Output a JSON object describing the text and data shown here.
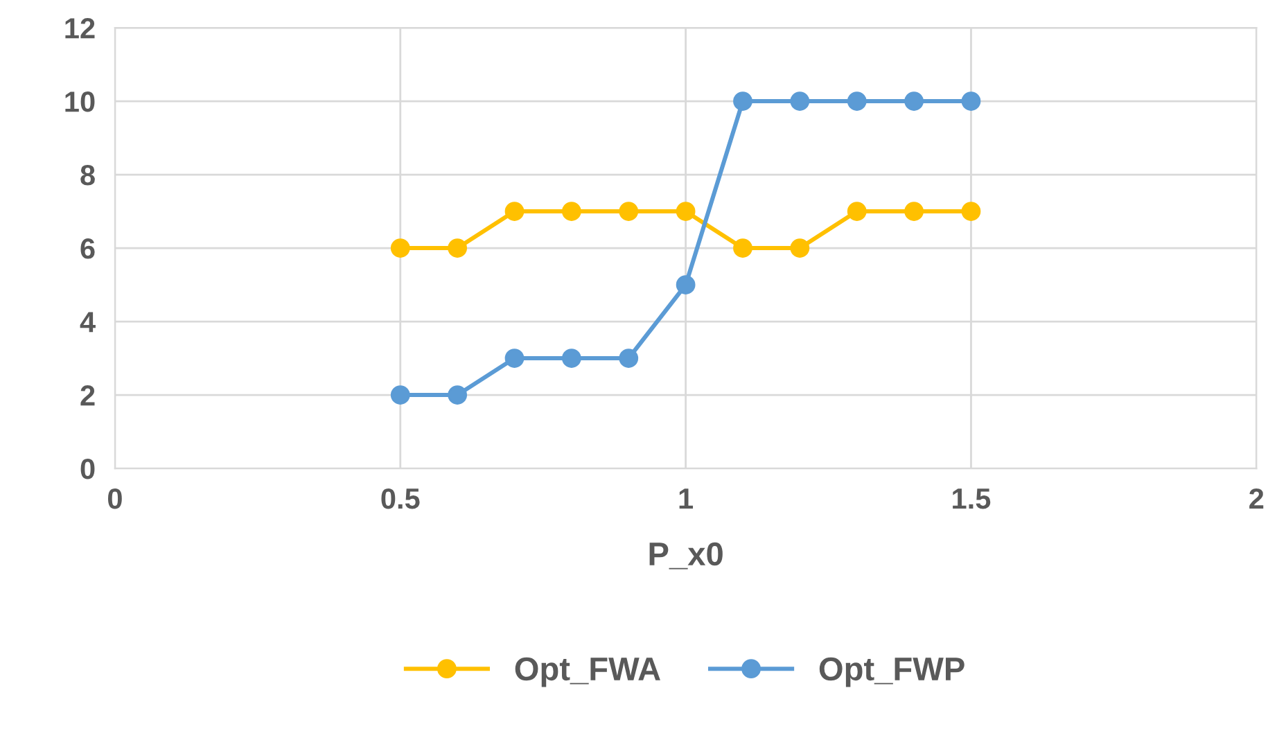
{
  "chart_data": {
    "type": "line",
    "xlabel": "P_x0",
    "x": [
      0.5,
      0.6,
      0.7,
      0.8,
      0.9,
      1.0,
      1.1,
      1.2,
      1.3,
      1.4,
      1.5
    ],
    "series": [
      {
        "name": "Opt_FWA",
        "color": "#ffc000",
        "values": [
          6,
          6,
          7,
          7,
          7,
          7,
          6,
          6,
          7,
          7,
          7
        ]
      },
      {
        "name": "Opt_FWP",
        "color": "#5b9bd5",
        "values": [
          2,
          2,
          3,
          3,
          3,
          5,
          10,
          10,
          10,
          10,
          10
        ]
      }
    ],
    "xlim": [
      0,
      2
    ],
    "xticks": [
      0,
      0.5,
      1,
      1.5,
      2
    ],
    "ylim": [
      0,
      12
    ],
    "yticks": [
      0,
      2,
      4,
      6,
      8,
      10,
      12
    ],
    "grid": true,
    "legend": "bottom",
    "marker": "circle",
    "line_style": "solid"
  }
}
